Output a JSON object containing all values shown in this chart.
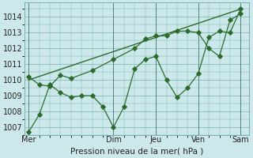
{
  "bg_color": "#cce8ea",
  "grid_color": "#7ab0b0",
  "line_color": "#2d6b2d",
  "xlabel": "Pression niveau de la mer( hPa )",
  "ylim": [
    1006.5,
    1014.9
  ],
  "yticks": [
    1007,
    1008,
    1009,
    1010,
    1011,
    1012,
    1013,
    1014
  ],
  "day_positions": [
    0,
    2,
    3,
    4,
    5
  ],
  "day_labels": [
    "Mer",
    "Dim",
    "Jeu",
    "Ven",
    "Sam"
  ],
  "x_vlines": [
    0,
    2,
    3,
    4,
    5
  ],
  "series1_x": [
    0,
    0.25,
    0.5,
    0.75,
    1.0,
    1.25,
    1.5,
    1.75,
    2.0,
    2.25,
    2.5,
    2.75,
    3.0,
    3.25,
    3.5,
    3.75,
    4.0,
    4.25,
    4.5,
    4.75,
    5.0
  ],
  "series1_y": [
    1006.7,
    1007.8,
    1009.7,
    1009.2,
    1008.9,
    1009.0,
    1009.0,
    1008.3,
    1007.0,
    1008.3,
    1010.7,
    1011.3,
    1011.5,
    1010.0,
    1008.9,
    1009.5,
    1010.4,
    1012.7,
    1013.1,
    1013.0,
    1014.5
  ],
  "series2_x": [
    0,
    0.25,
    0.5,
    0.75,
    1.0,
    1.5,
    2.0,
    2.5,
    2.75,
    3.0,
    3.25,
    3.5,
    3.75,
    4.0,
    4.25,
    4.5,
    4.75,
    5.0
  ],
  "series2_y": [
    1010.2,
    1009.7,
    1009.6,
    1010.3,
    1010.1,
    1010.6,
    1011.3,
    1012.0,
    1012.6,
    1012.8,
    1012.8,
    1013.1,
    1013.1,
    1013.0,
    1012.0,
    1011.5,
    1013.8,
    1014.2
  ],
  "series3_x": [
    0,
    5.0
  ],
  "series3_y": [
    1010.0,
    1014.5
  ],
  "xlim": [
    -0.1,
    5.2
  ]
}
